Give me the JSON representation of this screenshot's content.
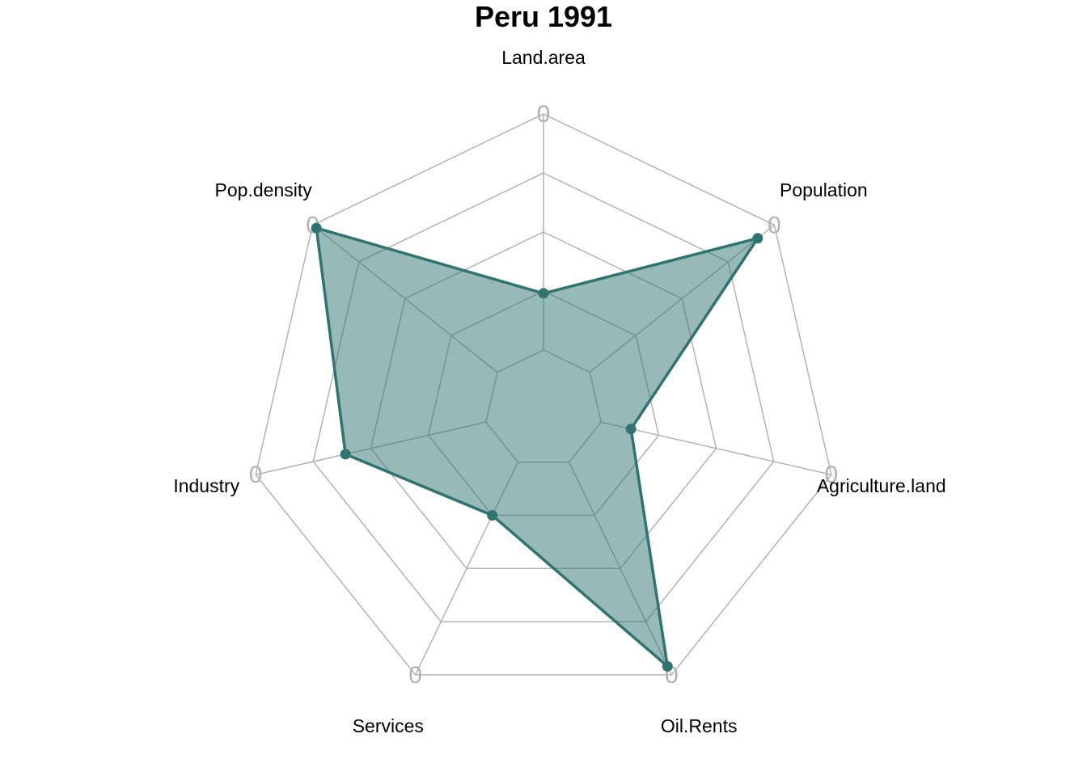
{
  "chart_data": {
    "type": "radar",
    "title": "Peru 1991",
    "axes": [
      "Land.area",
      "Population",
      "Agriculture.land",
      "Oil.Rents",
      "Services",
      "Industry",
      "Pop.density"
    ],
    "series": [
      {
        "values": [
          0.24,
          0.91,
          0.13,
          0.96,
          0.25,
          0.61,
          0.98
        ]
      }
    ],
    "range": [
      0,
      1
    ],
    "grid_levels": 5,
    "ring_tick_labels": [
      "0",
      "0",
      "0",
      "0",
      "0",
      "0",
      "0"
    ],
    "colors": {
      "line": "#2f7470",
      "fill": "#2f7470",
      "fill_opacity": 0.5,
      "grid": "#b3b3b3"
    }
  }
}
